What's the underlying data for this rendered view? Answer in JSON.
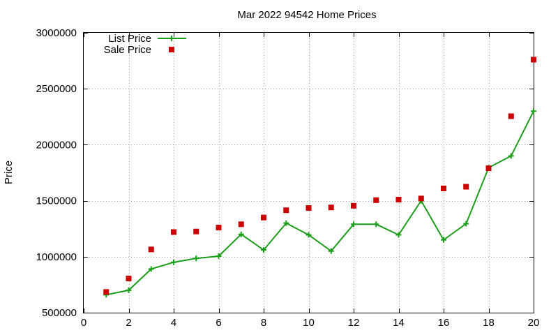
{
  "chart_data": {
    "type": "line",
    "title": "Mar 2022 94542 Home Prices",
    "xlabel": "",
    "ylabel": "Price",
    "xlim": [
      0,
      20
    ],
    "ylim": [
      500000,
      3000000
    ],
    "xticks": [
      0,
      2,
      4,
      6,
      8,
      10,
      12,
      14,
      16,
      18,
      20
    ],
    "yticks": [
      500000,
      1000000,
      1500000,
      2000000,
      2500000,
      3000000
    ],
    "grid": true,
    "legend_position": "top-left",
    "x": [
      1,
      2,
      3,
      4,
      5,
      6,
      7,
      8,
      9,
      10,
      11,
      12,
      13,
      14,
      15,
      16,
      17,
      18,
      19,
      20
    ],
    "series": [
      {
        "name": "List Price",
        "style": "line-with-plus-markers",
        "color": "#1a9e1a",
        "values": [
          660000,
          700000,
          890000,
          950000,
          985000,
          1005000,
          1200000,
          1060000,
          1300000,
          1195000,
          1050000,
          1290000,
          1290000,
          1195000,
          1500000,
          1150000,
          1295000,
          1795000,
          1900000,
          2300000
        ]
      },
      {
        "name": "Sale Price",
        "style": "square-points",
        "color": "#cc0000",
        "values": [
          685000,
          805000,
          1065000,
          1220000,
          1225000,
          1260000,
          1290000,
          1350000,
          1415000,
          1435000,
          1440000,
          1455000,
          1505000,
          1510000,
          1520000,
          1610000,
          1625000,
          1790000,
          2255000,
          2760000
        ]
      }
    ]
  }
}
